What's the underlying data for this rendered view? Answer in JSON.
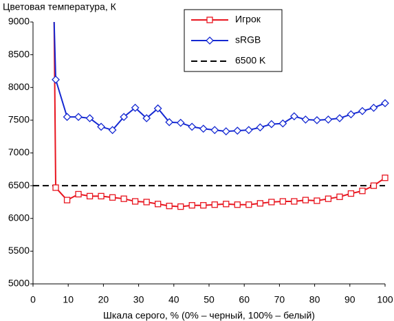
{
  "chart_data": {
    "type": "line",
    "y_label": "Цветовая температура, К",
    "x_label": "Шкала серого, % (0% – черный, 100% – белый)",
    "x": [
      6.0,
      6.45,
      9.68,
      12.9,
      16.13,
      19.35,
      22.58,
      25.81,
      29.03,
      32.26,
      35.48,
      38.71,
      41.94,
      45.16,
      48.39,
      51.61,
      54.84,
      58.06,
      61.29,
      64.52,
      67.74,
      70.97,
      74.19,
      77.42,
      80.65,
      83.87,
      87.1,
      90.32,
      93.55,
      96.77,
      100
    ],
    "series": [
      {
        "name": "Игрок",
        "color": "#e8141e",
        "marker": "square",
        "values": [
          9000,
          6470,
          6280,
          6370,
          6340,
          6340,
          6320,
          6300,
          6260,
          6250,
          6220,
          6190,
          6180,
          6200,
          6200,
          6210,
          6220,
          6210,
          6210,
          6230,
          6250,
          6260,
          6260,
          6280,
          6270,
          6300,
          6330,
          6380,
          6420,
          6500,
          6620
        ]
      },
      {
        "name": "sRGB",
        "color": "#1428d2",
        "marker": "diamond",
        "values": [
          9000,
          8120,
          7550,
          7550,
          7530,
          7400,
          7350,
          7550,
          7690,
          7530,
          7680,
          7470,
          7460,
          7400,
          7370,
          7350,
          7330,
          7340,
          7350,
          7390,
          7440,
          7450,
          7560,
          7510,
          7500,
          7510,
          7530,
          7590,
          7640,
          7690,
          7760
        ]
      }
    ],
    "reference_lines": [
      {
        "name": "6500 K",
        "value": 6500,
        "color": "#000000"
      }
    ],
    "xlim": [
      0,
      100
    ],
    "xticks": [
      0,
      10,
      20,
      30,
      40,
      50,
      60,
      70,
      80,
      90,
      100
    ],
    "ylim": [
      5000,
      9000
    ],
    "yticks": [
      5000,
      5500,
      6000,
      6500,
      7000,
      7500,
      8000,
      8500,
      9000
    ],
    "grid": false,
    "legend": "top"
  }
}
